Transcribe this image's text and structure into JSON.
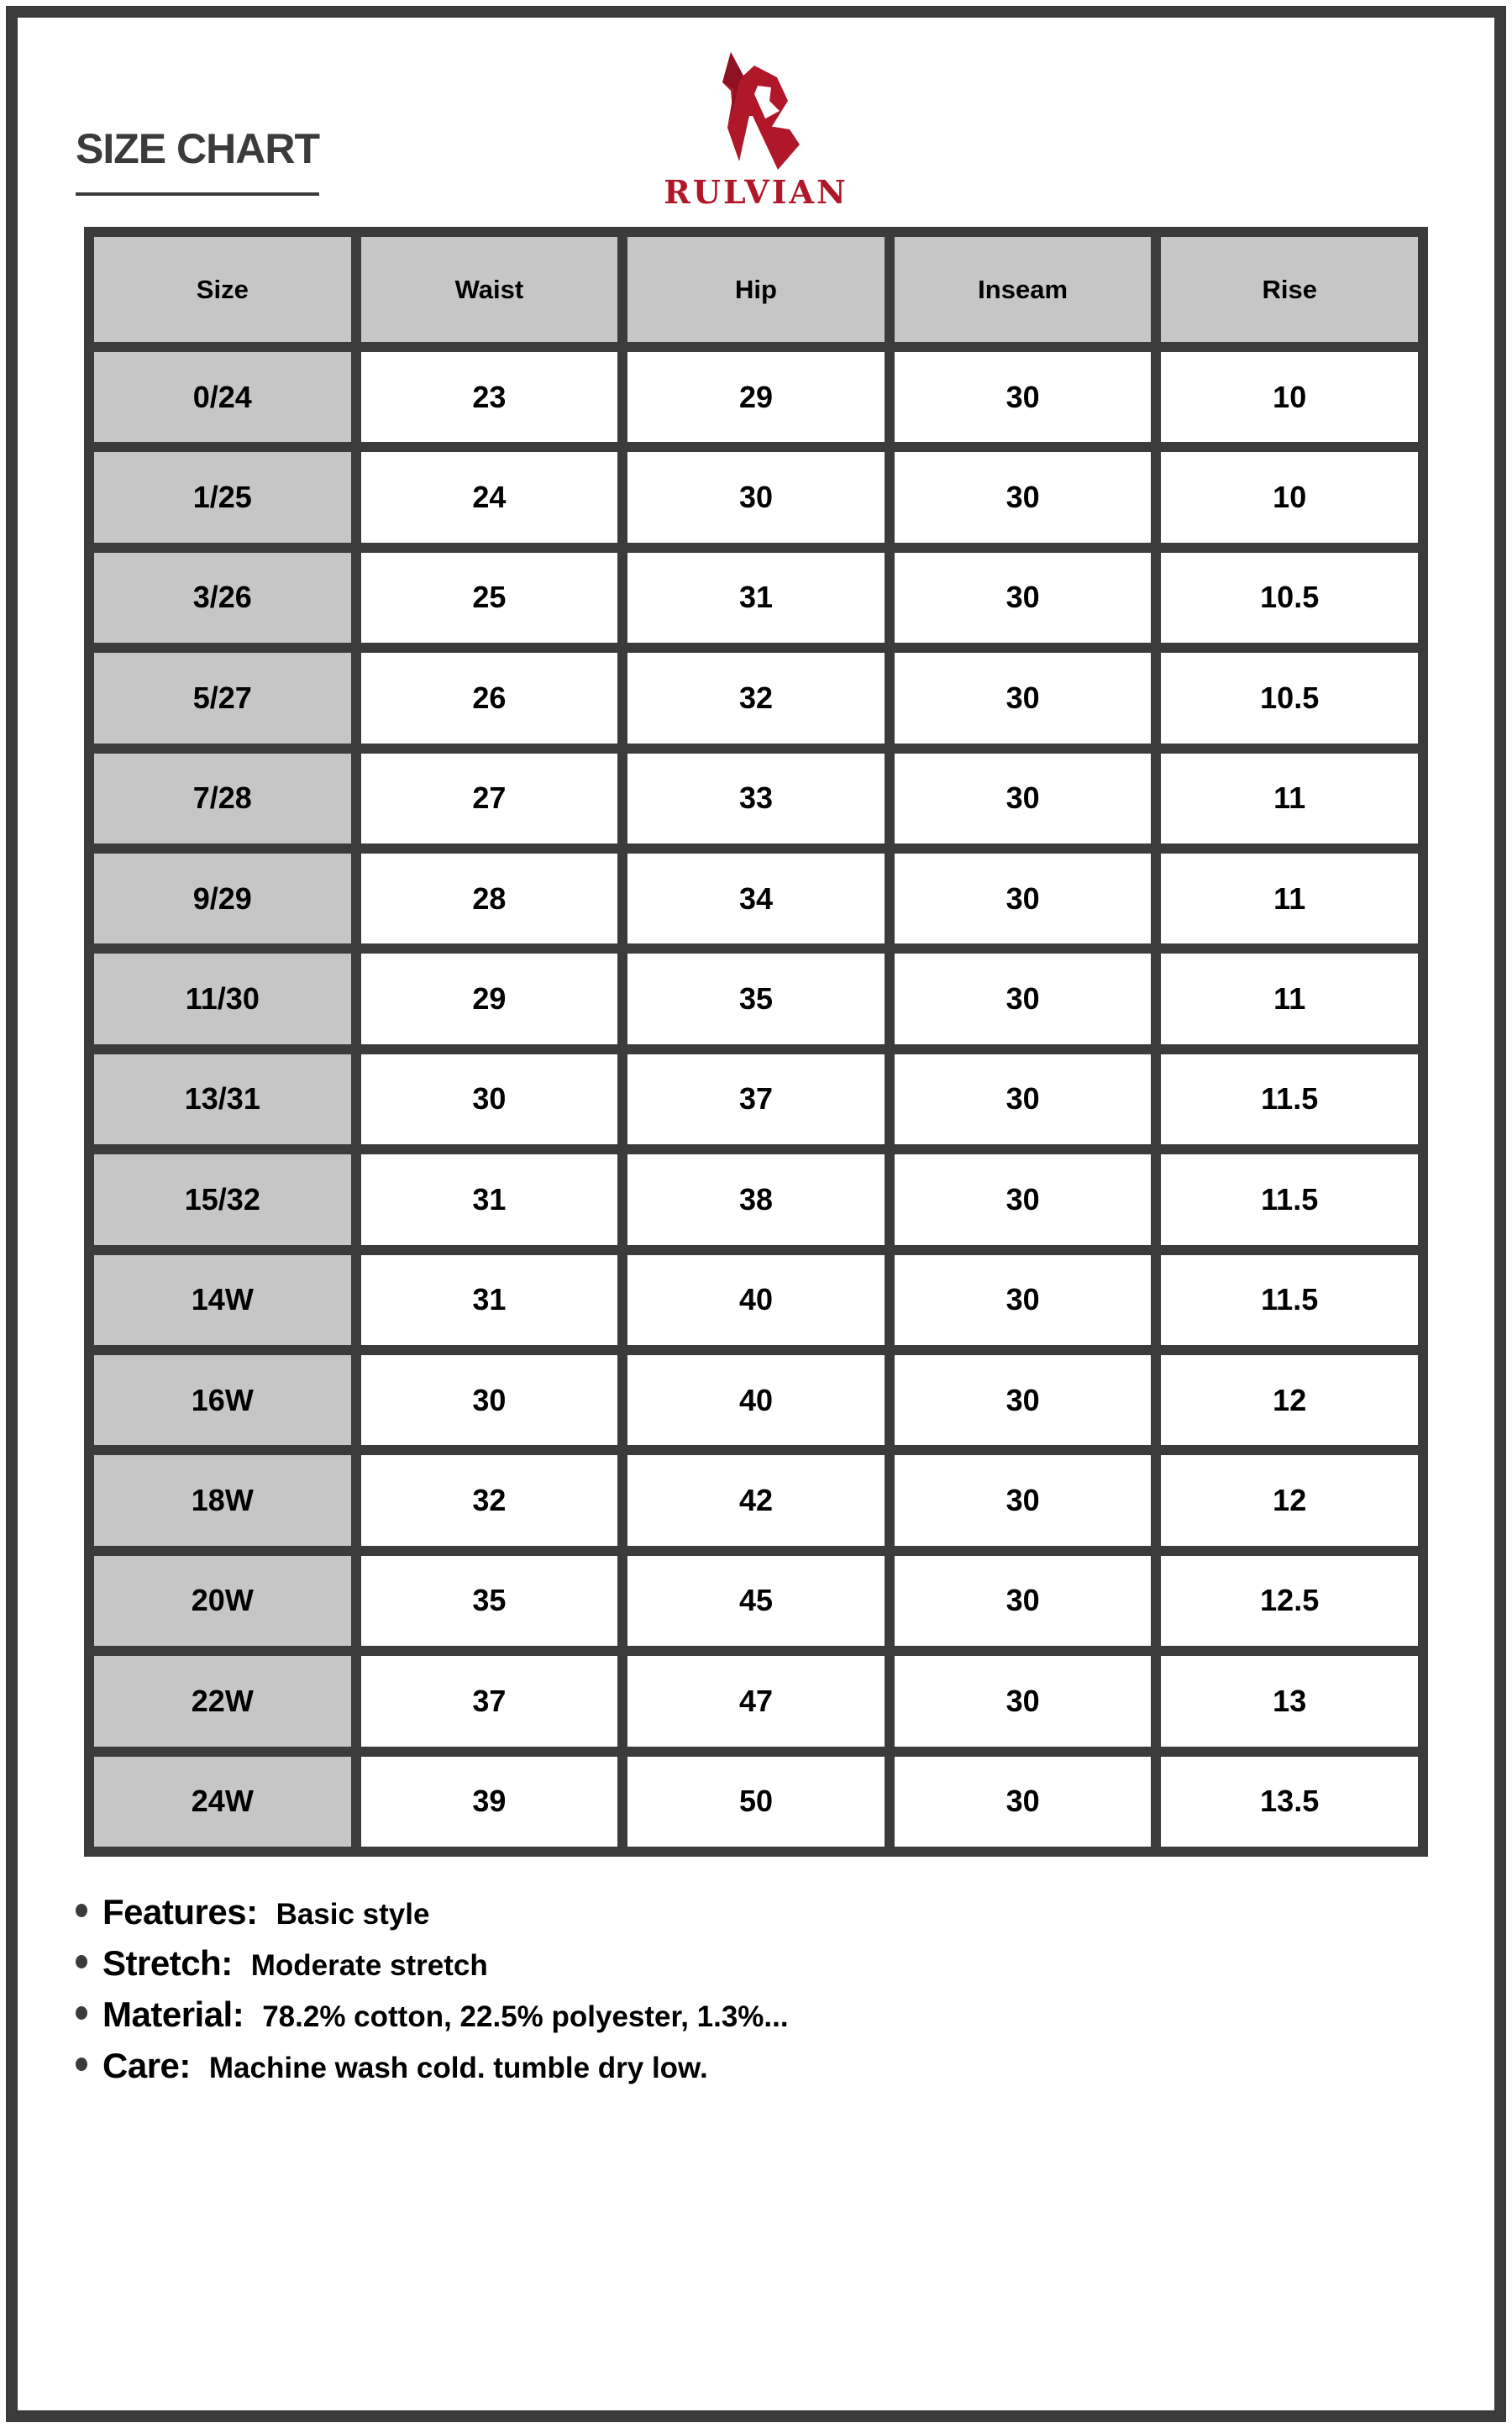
{
  "header": {
    "title": "SIZE CHART",
    "brand": "RULVIAN",
    "brand_color": "#b0182a",
    "logo_icon": "stylized-R-logo"
  },
  "table": {
    "columns": [
      "Size",
      "Waist",
      "Hip",
      "Inseam",
      "Rise"
    ],
    "rows": [
      [
        "0/24",
        "23",
        "29",
        "30",
        "10"
      ],
      [
        "1/25",
        "24",
        "30",
        "30",
        "10"
      ],
      [
        "3/26",
        "25",
        "31",
        "30",
        "10.5"
      ],
      [
        "5/27",
        "26",
        "32",
        "30",
        "10.5"
      ],
      [
        "7/28",
        "27",
        "33",
        "30",
        "11"
      ],
      [
        "9/29",
        "28",
        "34",
        "30",
        "11"
      ],
      [
        "11/30",
        "29",
        "35",
        "30",
        "11"
      ],
      [
        "13/31",
        "30",
        "37",
        "30",
        "11.5"
      ],
      [
        "15/32",
        "31",
        "38",
        "30",
        "11.5"
      ],
      [
        "14W",
        "31",
        "40",
        "30",
        "11.5"
      ],
      [
        "16W",
        "30",
        "40",
        "30",
        "12"
      ],
      [
        "18W",
        "32",
        "42",
        "30",
        "12"
      ],
      [
        "20W",
        "35",
        "45",
        "30",
        "12.5"
      ],
      [
        "22W",
        "37",
        "47",
        "30",
        "13"
      ],
      [
        "24W",
        "39",
        "50",
        "30",
        "13.5"
      ]
    ]
  },
  "notes": [
    {
      "label": "Features:",
      "value": "Basic style"
    },
    {
      "label": "Stretch:",
      "value": "Moderate stretch"
    },
    {
      "label": "Material:",
      "value": "78.2% cotton, 22.5% polyester, 1.3%..."
    },
    {
      "label": "Care:",
      "value": "Machine wash cold. tumble dry low."
    }
  ]
}
